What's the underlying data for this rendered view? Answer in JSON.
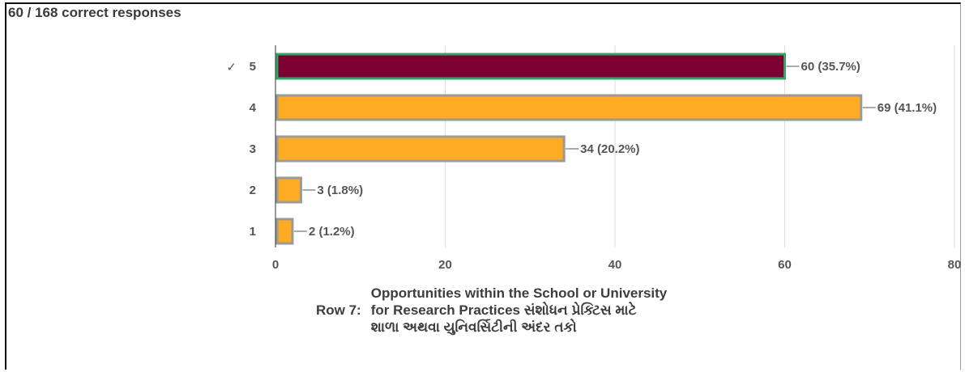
{
  "summary": "60 / 168 correct responses",
  "chart_data": {
    "type": "bar",
    "orientation": "horizontal",
    "categories": [
      "5",
      "4",
      "3",
      "2",
      "1"
    ],
    "values": [
      60,
      69,
      34,
      3,
      2
    ],
    "data_labels": [
      "60 (35.7%)",
      "69 (41.1%)",
      "34 (20.2%)",
      "3 (1.8%)",
      "2 (1.2%)"
    ],
    "correct_marker": "✓",
    "correct_category": "5",
    "xlim": [
      0,
      80
    ],
    "x_ticks": [
      "0",
      "20",
      "40",
      "60",
      "80"
    ],
    "grid": true,
    "colors": {
      "correct": "#7a0030",
      "correct_border": "#3aa06a",
      "other": "#ffab24",
      "other_border": "#9a9a9a",
      "grid": "#dddddd"
    }
  },
  "row_caption": {
    "prefix": "Row 7:",
    "lines": [
      "Opportunities within the School or University",
      "for Research Practices સંશોધન પ્રેક્ટિસ માટે",
      "શાળા અથવા યુનિવર્સિટીની અંદર તકો"
    ]
  }
}
